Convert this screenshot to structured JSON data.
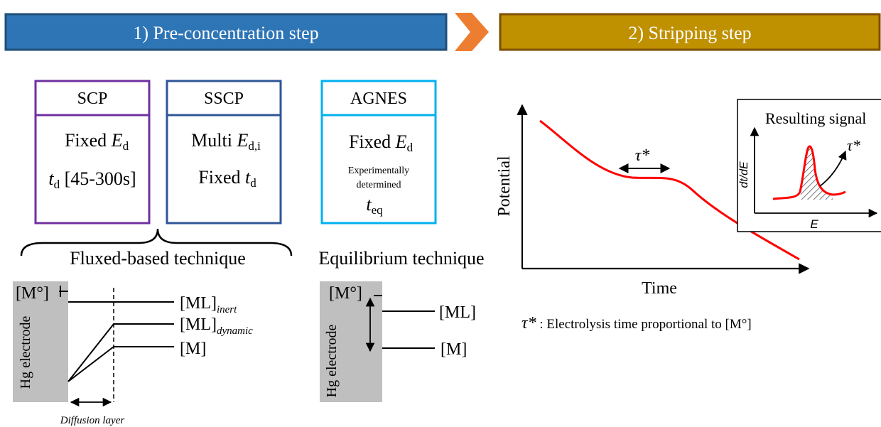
{
  "banners": {
    "step1": "1) Pre-concentration step",
    "step2": "2) Stripping step"
  },
  "colors": {
    "step1_fill": "#2e75b6",
    "step1_border": "#1f4e79",
    "step2_fill": "#bf9000",
    "step2_border": "#7f4f00",
    "arrow": "#ed7d31",
    "scp": "#7030a0",
    "sscp": "#2f5597",
    "agnes": "#00b0f0",
    "curve": "#ff0000",
    "electrode": "#bfbfbf"
  },
  "boxes": {
    "scp": {
      "title": "SCP",
      "line1_pre": "Fixed ",
      "line1_var": "E",
      "line1_sub": "d",
      "line2_var": "t",
      "line2_sub": "d",
      "line2_post": " [45-300s]"
    },
    "sscp": {
      "title": "SSCP",
      "line1_pre": "Multi ",
      "line1_var": "E",
      "line1_sub": "d,i",
      "line2_pre": "Fixed ",
      "line2_var": "t",
      "line2_sub": "d"
    },
    "agnes": {
      "title": "AGNES",
      "line1_pre": "Fixed ",
      "line1_var": "E",
      "line1_sub": "d",
      "note_line1": "Experimentally",
      "note_line2": "determined",
      "teq_var": "t",
      "teq_sub": "eq"
    }
  },
  "techniques": {
    "fluxed": "Fluxed-based technique",
    "equilibrium": "Equilibrium technique"
  },
  "fluxed_diagram": {
    "electrode": "Hg electrode",
    "m0": "[M°]",
    "ml": "[ML]",
    "inert": "inert",
    "dynamic": "dynamic",
    "m": "[M]",
    "diffusion": "Diffusion layer"
  },
  "equilibrium_diagram": {
    "electrode": "Hg electrode",
    "m0": "[M°]",
    "ml": "[ML]",
    "m": "[M]"
  },
  "plot": {
    "ylabel": "Potential",
    "xlabel": "Time",
    "tau": "τ*"
  },
  "inset": {
    "title": "Resulting signal",
    "ylabel": "dt/dE",
    "xlabel": "E",
    "tau": "τ*"
  },
  "footnote": {
    "symbol": "τ*",
    "text": " : Electrolysis time proportional to [M°]"
  }
}
